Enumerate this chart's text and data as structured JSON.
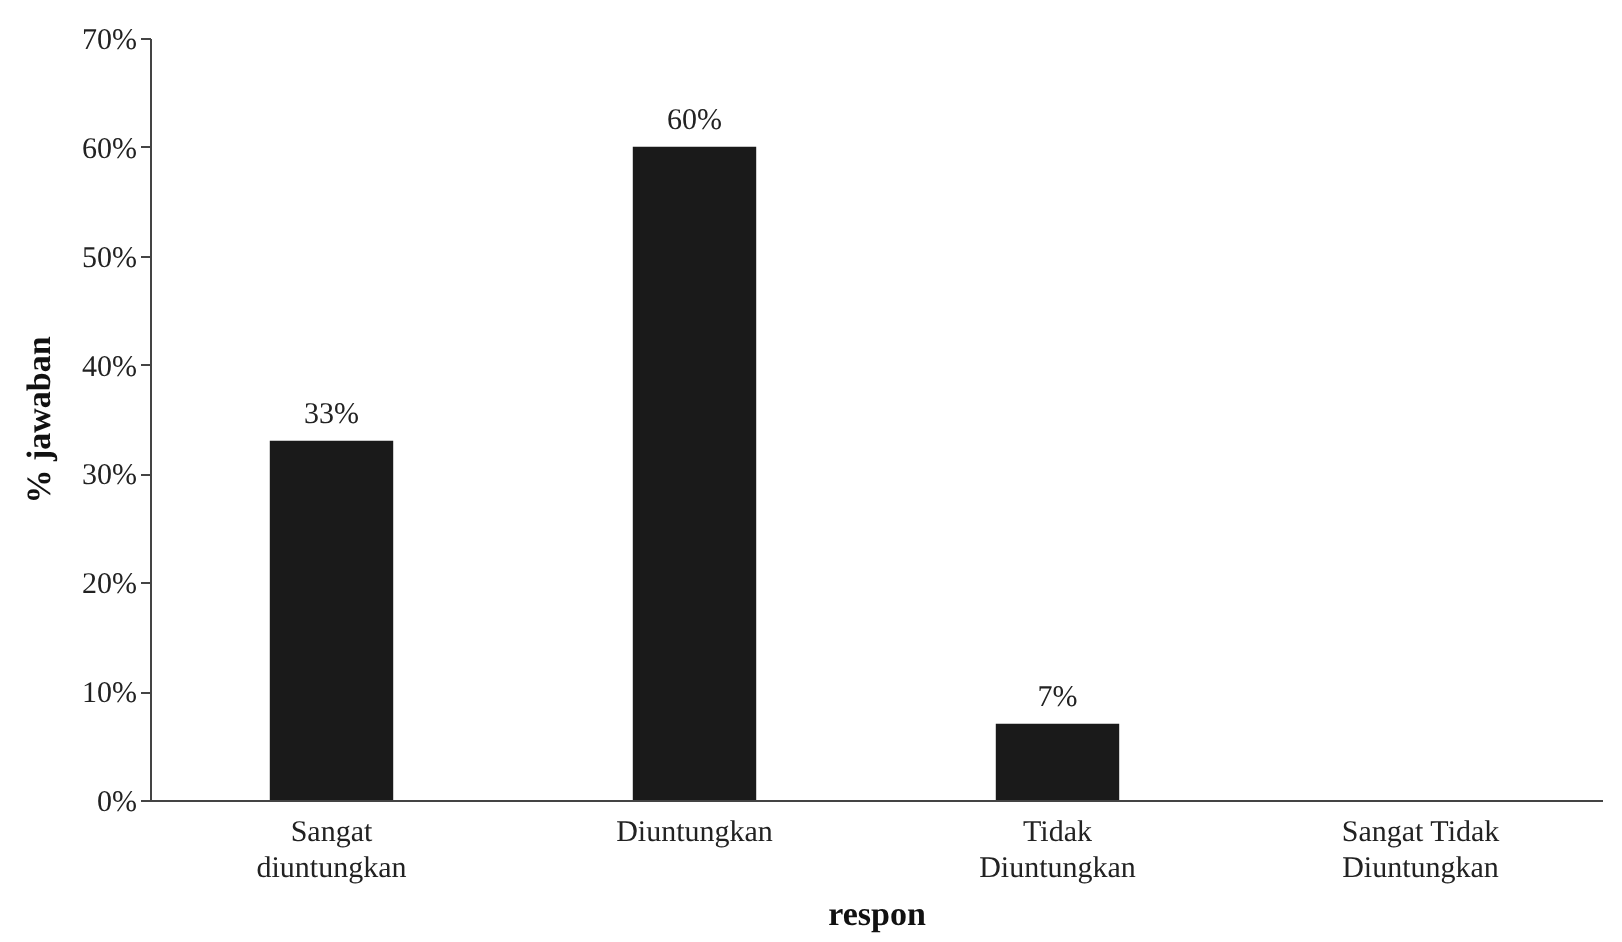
{
  "chart_data": {
    "type": "bar",
    "xlabel": "respon",
    "ylabel": "% jawaban",
    "categories": [
      "Sangat diuntungkan",
      "Diuntungkan",
      "Tidak Diuntungkan",
      "Sangat Tidak Diuntungkan"
    ],
    "values": [
      33,
      60,
      7,
      0
    ],
    "value_labels": [
      "33%",
      "60%",
      "7%",
      null
    ],
    "color": "#1a1a1a",
    "ylim": [
      0,
      70
    ],
    "yticks": [
      {
        "value": 0,
        "label": "0%"
      },
      {
        "value": 10,
        "label": "10%"
      },
      {
        "value": 20,
        "label": "20%"
      },
      {
        "value": 30,
        "label": "30%"
      },
      {
        "value": 40,
        "label": "40%"
      },
      {
        "value": 50,
        "label": "50%"
      },
      {
        "value": 60,
        "label": "60%"
      },
      {
        "value": 70,
        "label": "70%"
      }
    ],
    "grid": false
  }
}
